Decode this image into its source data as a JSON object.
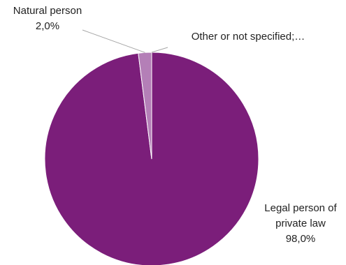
{
  "chart_data": {
    "type": "pie",
    "slices": [
      {
        "label": "Legal person of private law",
        "label_lines": [
          "Legal person of",
          "private law"
        ],
        "value_label": "98,0%",
        "value": 98.0,
        "color": "#7b1e7a"
      },
      {
        "label": "Natural person",
        "label_lines": [
          "Natural person"
        ],
        "value_label": "2,0%",
        "value": 2.0,
        "color": "#b47fb7"
      },
      {
        "label": "Other or not specified;...",
        "label_lines": [
          "Other or not specified;…"
        ],
        "value_label": "",
        "value": 0.0,
        "color": "#d9b8d9"
      }
    ],
    "legend": "none"
  }
}
